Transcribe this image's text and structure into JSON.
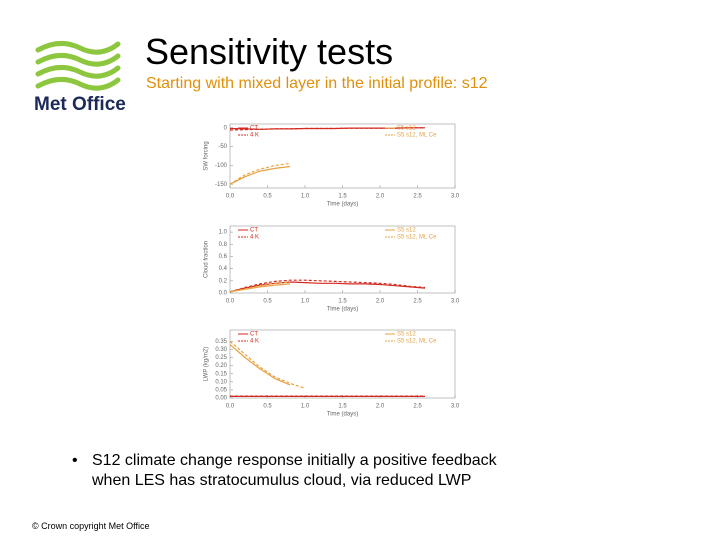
{
  "header": {
    "title": "Sensitivity tests",
    "subtitle": "Starting with mixed layer in the initial profile: s12"
  },
  "logo": {
    "text": "Met Office"
  },
  "chart_data": [
    {
      "type": "line",
      "xlabel": "Time (days)",
      "ylabel": "SW forcing",
      "x": [
        0,
        0.2,
        0.4,
        0.6,
        0.8,
        1.0,
        1.2,
        1.4,
        1.6,
        1.8,
        2.0,
        2.2,
        2.4,
        2.6
      ],
      "xlim": [
        0,
        3
      ],
      "xticks": [
        {
          "value": 0,
          "label": "0.0"
        },
        0.5,
        {
          "value": 1,
          "label": "1.0"
        },
        1.5,
        {
          "value": 2,
          "label": "2.0"
        },
        2.5,
        {
          "value": 3,
          "label": "3.0"
        }
      ],
      "ylim": [
        -160,
        10
      ],
      "yticks": [
        0,
        -50,
        -100,
        -150
      ],
      "series": [
        {
          "name": "CT",
          "color": "#d42a20",
          "style": "solid",
          "values": [
            -2,
            -3,
            -4,
            -3,
            -3,
            -2,
            -2,
            -2,
            -1,
            -1,
            -1,
            -1,
            0,
            0
          ]
        },
        {
          "name": "4 K",
          "color": "#d42a20",
          "style": "dashed",
          "values": [
            -6,
            -5,
            -4,
            -3,
            -3,
            -2,
            -2,
            -2,
            -1,
            -1,
            -1,
            -1,
            0,
            0
          ]
        },
        {
          "name": "S5 s12",
          "color": "#e8a040",
          "style": "solid",
          "values": [
            -150,
            -130,
            -115,
            -108,
            -103,
            null,
            null,
            null,
            null,
            null,
            null,
            null,
            null,
            null
          ]
        },
        {
          "name": "S5 s12, ML Ce",
          "color": "#e8a040",
          "style": "dashed",
          "values": [
            -150,
            -125,
            -110,
            -100,
            -95,
            null,
            null,
            null,
            null,
            null,
            null,
            null,
            null,
            null
          ]
        }
      ]
    },
    {
      "type": "line",
      "xlabel": "Time (days)",
      "ylabel": "Cloud fraction",
      "x": [
        0,
        0.2,
        0.4,
        0.6,
        0.8,
        1.0,
        1.2,
        1.4,
        1.6,
        1.8,
        2.0,
        2.2,
        2.4,
        2.6
      ],
      "xlim": [
        0,
        3
      ],
      "xticks": [
        {
          "value": 0,
          "label": "0.0"
        },
        0.5,
        {
          "value": 1,
          "label": "1.0"
        },
        1.5,
        {
          "value": 2,
          "label": "2.0"
        },
        2.5,
        {
          "value": 3,
          "label": "3.0"
        }
      ],
      "ylim": [
        0,
        1.1
      ],
      "yticks": [
        {
          "value": 0,
          "label": "0.0"
        },
        0.2,
        0.4,
        0.6,
        0.8,
        {
          "value": 1,
          "label": "1.0"
        }
      ],
      "series": [
        {
          "name": "CT",
          "color": "#d42a20",
          "style": "solid",
          "values": [
            0.02,
            0.08,
            0.13,
            0.16,
            0.18,
            0.17,
            0.16,
            0.16,
            0.15,
            0.15,
            0.14,
            0.12,
            0.1,
            0.08
          ]
        },
        {
          "name": "4 K",
          "color": "#d42a20",
          "style": "dashed",
          "values": [
            0.02,
            0.09,
            0.15,
            0.19,
            0.21,
            0.21,
            0.2,
            0.19,
            0.18,
            0.17,
            0.16,
            0.14,
            0.11,
            0.09
          ]
        },
        {
          "name": "S5 s12",
          "color": "#e8a040",
          "style": "solid",
          "values": [
            0.02,
            0.06,
            0.1,
            0.13,
            0.15,
            null,
            null,
            null,
            null,
            null,
            null,
            null,
            null,
            null
          ]
        },
        {
          "name": "S5 s12, ML Ce",
          "color": "#e8a040",
          "style": "dashed",
          "values": [
            0.02,
            0.07,
            0.12,
            0.16,
            0.18,
            null,
            null,
            null,
            null,
            null,
            null,
            null,
            null,
            null
          ]
        }
      ]
    },
    {
      "type": "line",
      "xlabel": "Time (days)",
      "ylabel": "LWP (kg/m2)",
      "x": [
        0,
        0.2,
        0.4,
        0.6,
        0.8,
        1.0,
        1.2,
        1.4,
        1.6,
        1.8,
        2.0,
        2.2,
        2.4,
        2.6
      ],
      "xlim": [
        0,
        3
      ],
      "xticks": [
        {
          "value": 0,
          "label": "0.0"
        },
        0.5,
        {
          "value": 1,
          "label": "1.0"
        },
        1.5,
        {
          "value": 2,
          "label": "2.0"
        },
        2.5,
        {
          "value": 3,
          "label": "3.0"
        }
      ],
      "ylim": [
        0,
        0.42
      ],
      "yticks": [
        {
          "value": 0,
          "label": "0.00"
        },
        0.05,
        {
          "value": 0.1,
          "label": "0.10"
        },
        0.15,
        {
          "value": 0.2,
          "label": "0.20"
        },
        0.25,
        {
          "value": 0.3,
          "label": "0.30"
        },
        0.35
      ],
      "series": [
        {
          "name": "CT",
          "color": "#d42a20",
          "style": "solid",
          "values": [
            0.01,
            0.01,
            0.01,
            0.01,
            0.01,
            0.01,
            0.01,
            0.01,
            0.01,
            0.01,
            0.01,
            0.01,
            0.01,
            0.01
          ]
        },
        {
          "name": "4 K",
          "color": "#d42a20",
          "style": "dashed",
          "values": [
            0.012,
            0.012,
            0.012,
            0.012,
            0.012,
            0.012,
            0.012,
            0.012,
            0.012,
            0.012,
            0.012,
            0.012,
            0.012,
            0.012
          ]
        },
        {
          "name": "S5 s12",
          "color": "#e8a040",
          "style": "solid",
          "values": [
            0.33,
            0.25,
            0.18,
            0.12,
            0.08,
            null,
            null,
            null,
            null,
            null,
            null,
            null,
            null,
            null
          ]
        },
        {
          "name": "S5 s12, ML Ce",
          "color": "#e8a040",
          "style": "dashed",
          "values": [
            0.35,
            0.27,
            0.19,
            0.13,
            0.09,
            0.06,
            null,
            null,
            null,
            null,
            null,
            null,
            null,
            null
          ]
        }
      ]
    }
  ],
  "bullets": [
    "S12 climate change response initially a positive feedback when LES has stratocumulus cloud, via reduced LWP"
  ],
  "footer": "© Crown copyright   Met Office"
}
